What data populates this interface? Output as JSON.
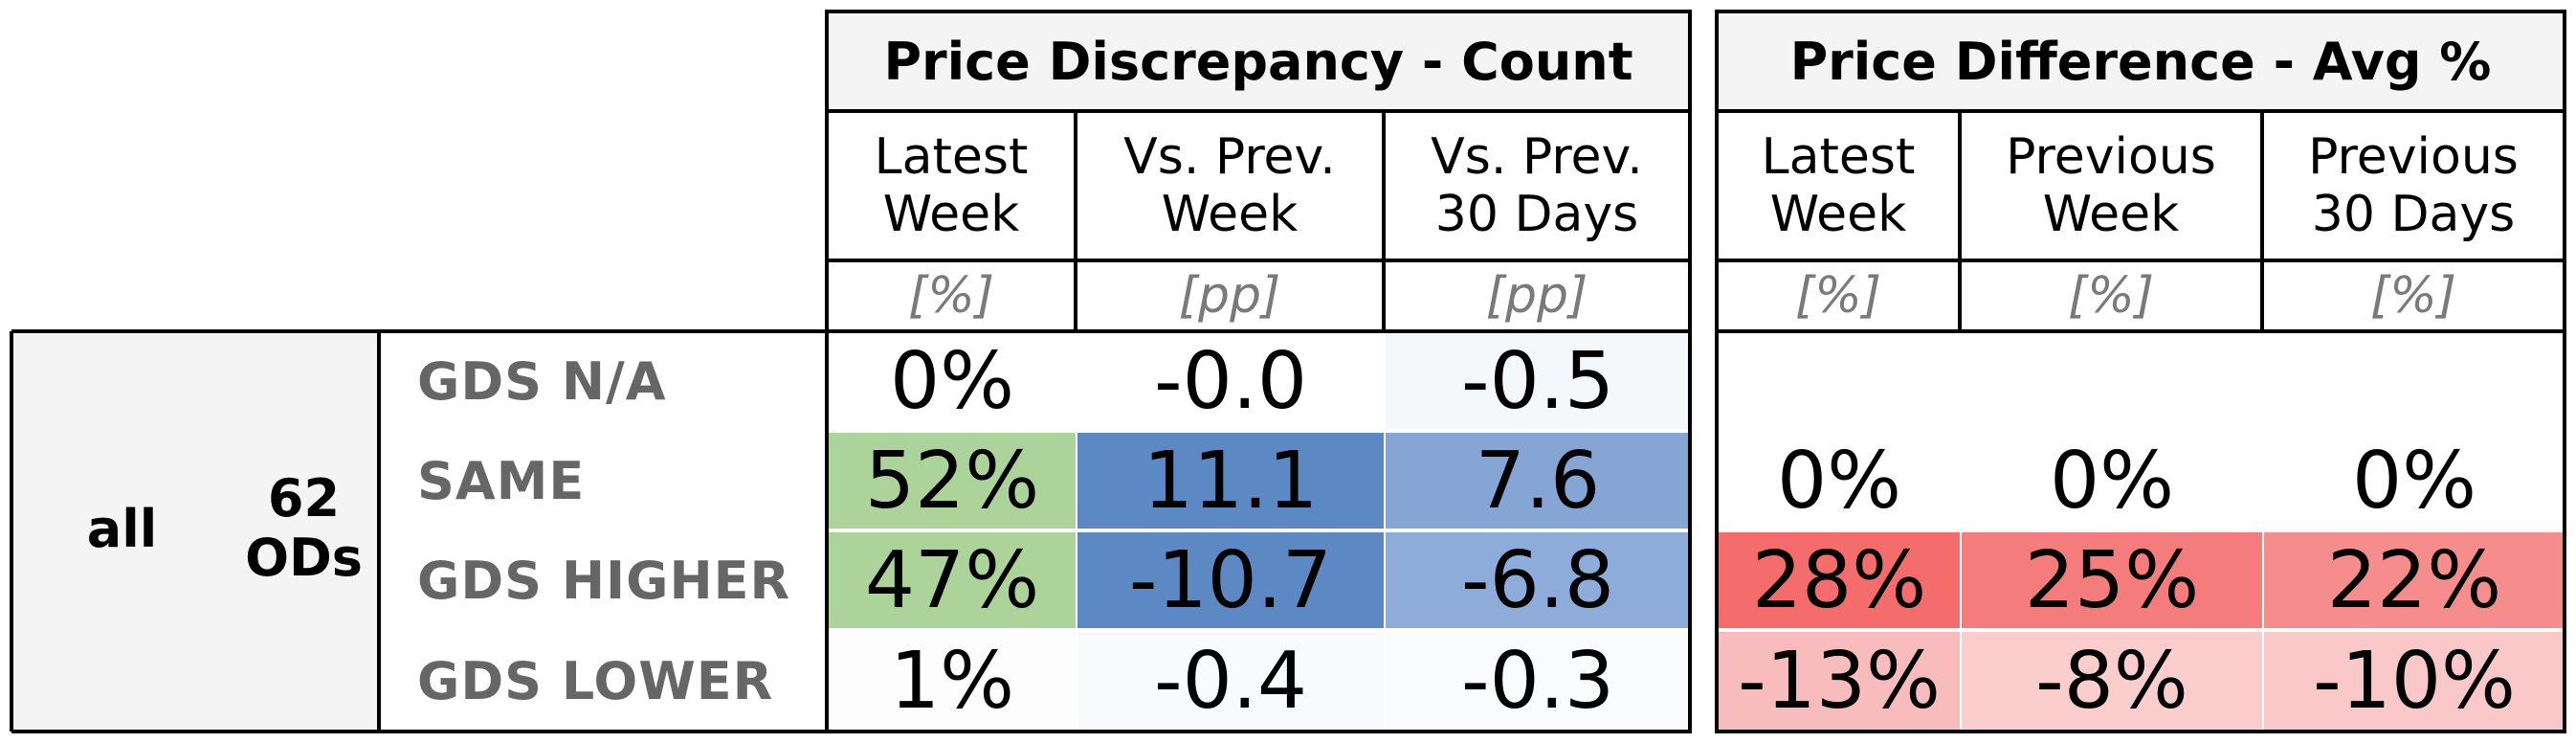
{
  "table": {
    "group_count": {
      "title": "Price Discrepancy - Count",
      "columns": [
        {
          "label1": "Latest",
          "label2": "Week",
          "unit": "[%]"
        },
        {
          "label1": "Vs. Prev.",
          "label2": "Week",
          "unit": "[pp]"
        },
        {
          "label1": "Vs. Prev.",
          "label2": "30 Days",
          "unit": "[pp]"
        }
      ]
    },
    "group_avg": {
      "title": "Price Difference - Avg %",
      "columns": [
        {
          "label1": "Latest",
          "label2": "Week",
          "unit": "[%]"
        },
        {
          "label1": "Previous",
          "label2": "Week",
          "unit": "[%]"
        },
        {
          "label1": "Previous",
          "label2": "30 Days",
          "unit": "[%]"
        }
      ]
    },
    "left": {
      "scope": "all",
      "count_num": "62",
      "count_unit": "ODs"
    },
    "rows": [
      {
        "label": "GDS N/A",
        "count": [
          "0%",
          "-0.0",
          "-0.5"
        ],
        "count_bg": [
          "#ffffff",
          "#ffffff",
          "#f5f8fb"
        ],
        "avg": [
          "",
          "",
          ""
        ],
        "avg_bg": [
          "#ffffff",
          "#ffffff",
          "#ffffff"
        ]
      },
      {
        "label": "SAME",
        "count": [
          "52%",
          "11.1",
          "7.6"
        ],
        "count_bg": [
          "#abd39a",
          "#5c88c4",
          "#85a5d5"
        ],
        "avg": [
          "0%",
          "0%",
          "0%"
        ],
        "avg_bg": [
          "#ffffff",
          "#ffffff",
          "#ffffff"
        ]
      },
      {
        "label": "GDS HIGHER",
        "count": [
          "47%",
          "-10.7",
          "-6.8"
        ],
        "count_bg": [
          "#abd39a",
          "#5c88c4",
          "#8eacda"
        ],
        "avg": [
          "28%",
          "25%",
          "22%"
        ],
        "avg_bg": [
          "#f46c6c",
          "#f57c7c",
          "#f68d8d"
        ]
      },
      {
        "label": "GDS LOWER",
        "count": [
          "1%",
          "-0.4",
          "-0.3"
        ],
        "count_bg": [
          "#fdfdfd",
          "#f9fafc",
          "#fafbfd"
        ],
        "avg": [
          "-13%",
          "-8%",
          "-10%"
        ],
        "avg_bg": [
          "#f9bcbc",
          "#fbcdcd",
          "#fac8c8"
        ]
      }
    ]
  }
}
